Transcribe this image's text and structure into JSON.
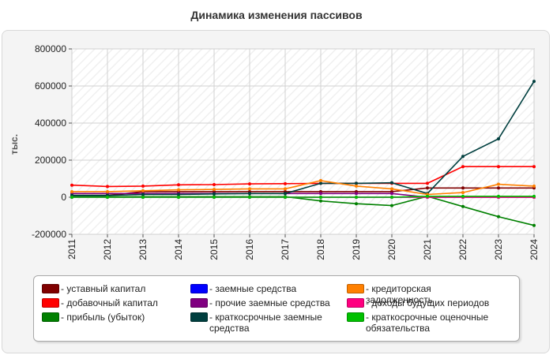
{
  "chart_data": {
    "type": "line",
    "title": "Динамика изменения пассивов",
    "ylabel": "тыс.",
    "ylim": [
      -200000,
      800000
    ],
    "yticks": [
      "-200000",
      "0",
      "200000",
      "400000",
      "600000",
      "800000"
    ],
    "ytick_values": [
      -200000,
      0,
      200000,
      400000,
      600000,
      800000
    ],
    "categories": [
      "2011",
      "2012",
      "2013",
      "2014",
      "2015",
      "2016",
      "2017",
      "2018",
      "2019",
      "2020",
      "2021",
      "2022",
      "2023",
      "2024"
    ],
    "grid": true,
    "legend_position": "bottom",
    "series": [
      {
        "name": "- уставный капитал",
        "color": "#800000",
        "values": [
          10000,
          10000,
          30000,
          30000,
          30000,
          30000,
          30000,
          30000,
          30000,
          30000,
          50000,
          50000,
          50000,
          50000
        ]
      },
      {
        "name": "- добавочный капитал",
        "color": "#ff0000",
        "values": [
          65000,
          58000,
          60000,
          67000,
          68000,
          72000,
          73000,
          75000,
          75000,
          75000,
          75000,
          165000,
          165000,
          165000
        ]
      },
      {
        "name": "- прибыль (убыток)",
        "color": "#008000",
        "values": [
          5000,
          3000,
          3000,
          3000,
          3000,
          3000,
          3000,
          -20000,
          -35000,
          -45000,
          5000,
          -50000,
          -105000,
          -152000
        ]
      },
      {
        "name": "- заемные средства",
        "color": "#0000ff",
        "values": [
          0,
          0,
          0,
          0,
          0,
          0,
          0,
          0,
          0,
          0,
          0,
          0,
          0,
          0
        ]
      },
      {
        "name": "- прочие заемные средства",
        "color": "#800080",
        "values": [
          20000,
          20000,
          20000,
          20000,
          20000,
          20000,
          20000,
          20000,
          20000,
          20000,
          0,
          0,
          0,
          0
        ]
      },
      {
        "name": "- краткосрочные заемные средства",
        "color": "#003f3f",
        "values": [
          10000,
          10000,
          15000,
          15000,
          18000,
          20000,
          20000,
          75000,
          75000,
          78000,
          20000,
          220000,
          315000,
          625000
        ]
      },
      {
        "name": "- кредиторская задолженность",
        "color": "#ff8000",
        "values": [
          30000,
          30000,
          35000,
          40000,
          42000,
          45000,
          45000,
          90000,
          60000,
          45000,
          15000,
          25000,
          70000,
          60000
        ]
      },
      {
        "name": "- доходы будущих периодов",
        "color": "#ff0080",
        "values": [
          0,
          0,
          0,
          0,
          0,
          0,
          0,
          0,
          0,
          0,
          0,
          0,
          0,
          0
        ]
      },
      {
        "name": "- краткосрочные оценочные обязательства",
        "color": "#00c000",
        "values": [
          0,
          0,
          0,
          0,
          0,
          0,
          0,
          0,
          0,
          0,
          5000,
          5000,
          5000,
          5000
        ]
      }
    ]
  }
}
